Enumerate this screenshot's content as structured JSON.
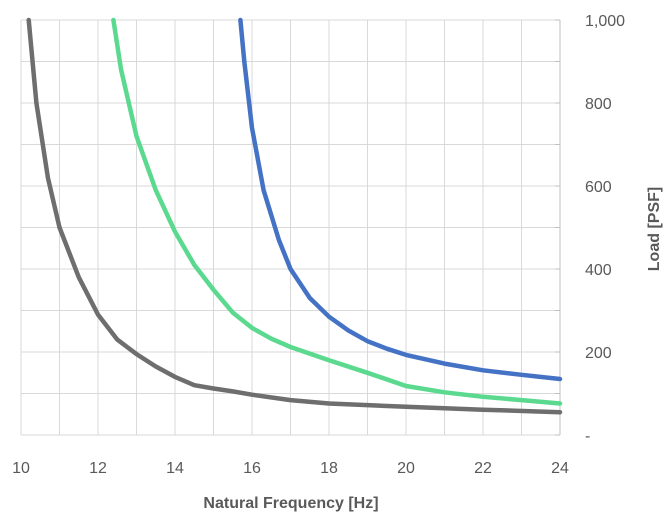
{
  "chart_data": {
    "type": "line",
    "xlabel": "Natural Frequency [Hz]",
    "ylabel": "Load [PSF]",
    "xlim": [
      10,
      24
    ],
    "ylim": [
      0,
      1000
    ],
    "x_ticks": [
      "10",
      "12",
      "14",
      "16",
      "18",
      "20",
      "22",
      "24"
    ],
    "y_ticks": [
      "-",
      "200",
      "400",
      "600",
      "800",
      "1,000"
    ],
    "y_axis_side": "right",
    "grid": true,
    "legend": "none",
    "series": [
      {
        "color": "#6e6e6e",
        "points": [
          [
            10.2,
            1000
          ],
          [
            10.4,
            800
          ],
          [
            10.7,
            620
          ],
          [
            11.0,
            500
          ],
          [
            11.5,
            380
          ],
          [
            12.0,
            290
          ],
          [
            12.5,
            230
          ],
          [
            13.0,
            195
          ],
          [
            13.5,
            165
          ],
          [
            14.0,
            140
          ],
          [
            14.5,
            120
          ],
          [
            15.0,
            112
          ],
          [
            15.5,
            105
          ],
          [
            16.0,
            97
          ],
          [
            17.0,
            84
          ],
          [
            18.0,
            76
          ],
          [
            20.0,
            68
          ],
          [
            22.0,
            61
          ],
          [
            24.0,
            55
          ]
        ]
      },
      {
        "color": "#5ad98f",
        "points": [
          [
            12.4,
            1000
          ],
          [
            12.6,
            880
          ],
          [
            13.0,
            720
          ],
          [
            13.5,
            590
          ],
          [
            14.0,
            490
          ],
          [
            14.5,
            410
          ],
          [
            15.0,
            350
          ],
          [
            15.5,
            295
          ],
          [
            16.0,
            258
          ],
          [
            16.5,
            232
          ],
          [
            17.0,
            212
          ],
          [
            18.0,
            180
          ],
          [
            19.0,
            150
          ],
          [
            20.0,
            118
          ],
          [
            21.0,
            103
          ],
          [
            22.0,
            92
          ],
          [
            23.0,
            84
          ],
          [
            24.0,
            76
          ]
        ]
      },
      {
        "color": "#4472c4",
        "points": [
          [
            15.7,
            1000
          ],
          [
            15.8,
            900
          ],
          [
            16.0,
            740
          ],
          [
            16.3,
            590
          ],
          [
            16.7,
            470
          ],
          [
            17.0,
            400
          ],
          [
            17.5,
            330
          ],
          [
            18.0,
            285
          ],
          [
            18.5,
            252
          ],
          [
            19.0,
            226
          ],
          [
            19.5,
            208
          ],
          [
            20.0,
            193
          ],
          [
            21.0,
            172
          ],
          [
            22.0,
            156
          ],
          [
            23.0,
            145
          ],
          [
            24.0,
            135
          ]
        ]
      }
    ]
  }
}
